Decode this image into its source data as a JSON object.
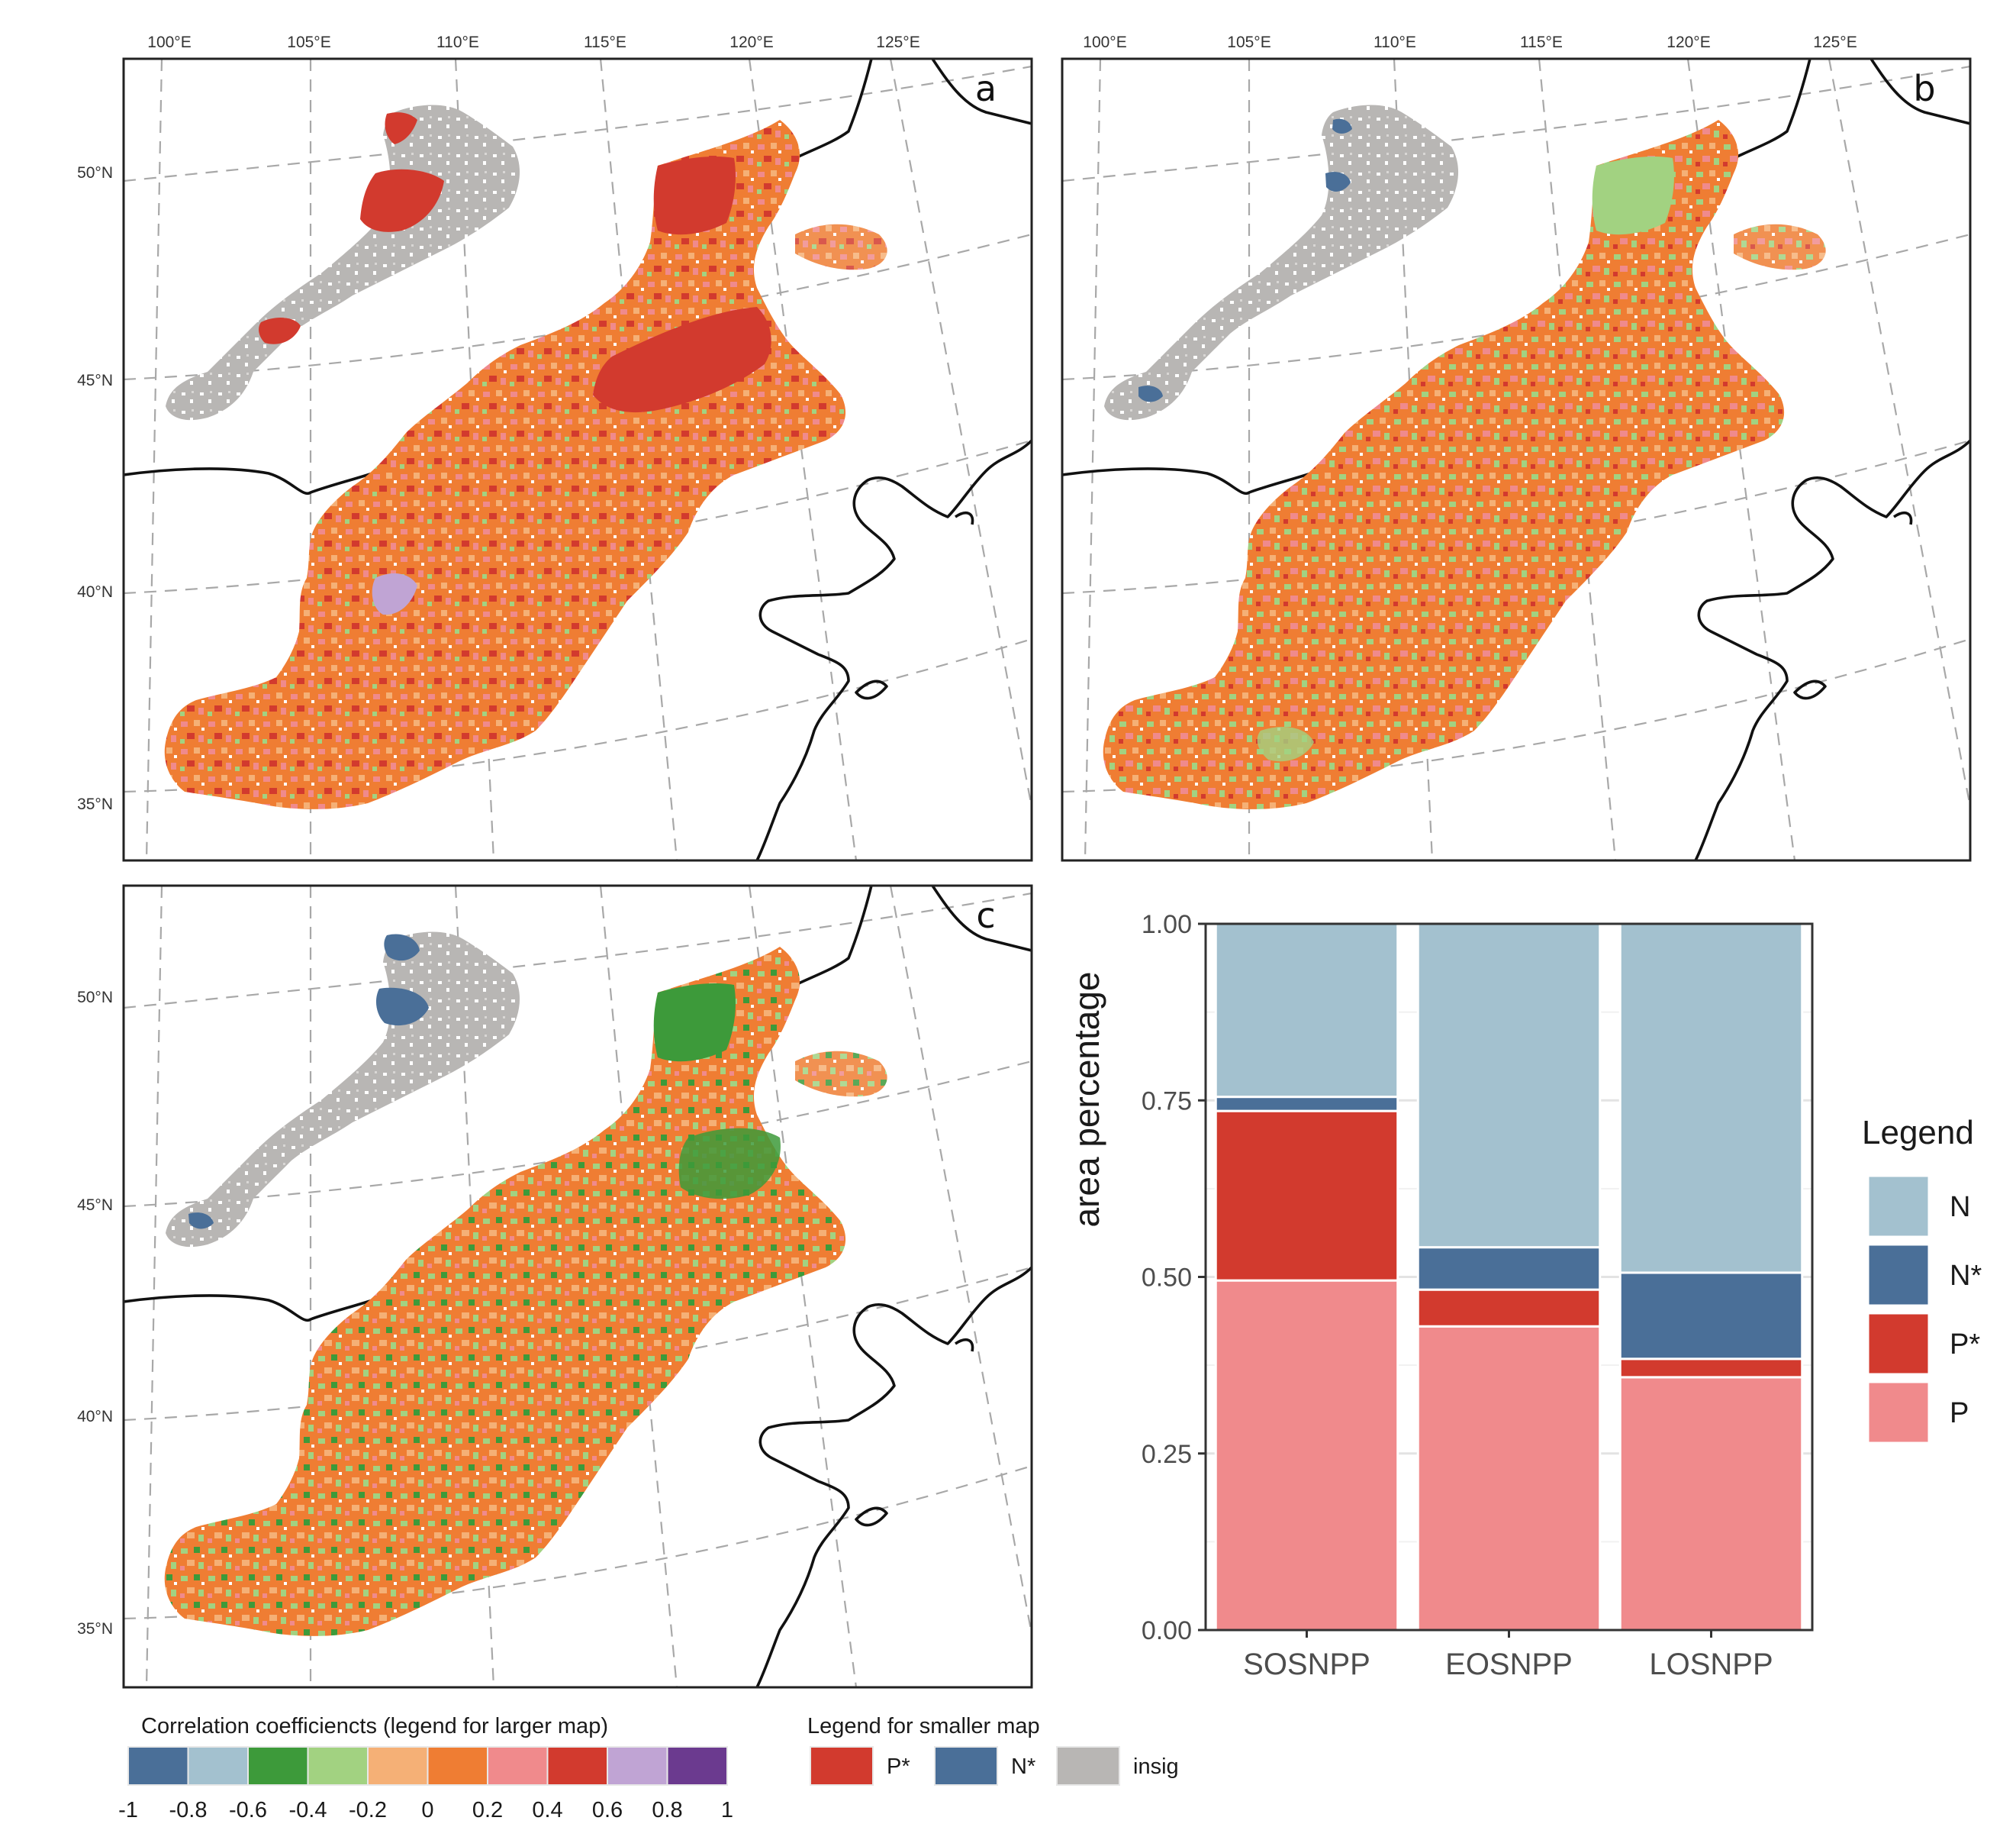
{
  "figure": {
    "panel_labels": [
      "a",
      "b",
      "c"
    ],
    "longitude_labels": [
      "100°E",
      "105°E",
      "110°E",
      "115°E",
      "120°E",
      "125°E"
    ],
    "latitude_labels": [
      "50°N",
      "45°N",
      "40°N",
      "35°N"
    ]
  },
  "chart_data": {
    "type": "bar",
    "stacked": true,
    "categories": [
      "SOSNPP",
      "EOSNPP",
      "LOSNPP"
    ],
    "series": [
      {
        "name": "P",
        "color": "#f08a8c",
        "values": [
          0.495,
          0.43,
          0.358
        ]
      },
      {
        "name": "P*",
        "color": "#d23a2e",
        "values": [
          0.24,
          0.052,
          0.026
        ]
      },
      {
        "name": "N*",
        "color": "#4a6f98",
        "values": [
          0.02,
          0.06,
          0.122
        ]
      },
      {
        "name": "N",
        "color": "#a3c1cf",
        "values": [
          0.245,
          0.458,
          0.494
        ]
      }
    ],
    "ylabel": "area percentage",
    "xlabel": "",
    "ylim": [
      0,
      1
    ],
    "yticks": [
      "0.00",
      "0.25",
      "0.50",
      "0.75",
      "1.00"
    ],
    "grid": true,
    "legend": {
      "title": "Legend",
      "position": "right",
      "order": [
        "N",
        "N*",
        "P*",
        "P"
      ]
    }
  },
  "colorbar": {
    "title": "Correlation coefficiencts (legend for larger map)",
    "colors": [
      "#4a6f98",
      "#a3c1cf",
      "#3d9a3a",
      "#a2d281",
      "#f5b076",
      "#ef7d33",
      "#f08a8c",
      "#d23a2e",
      "#c0a4d4",
      "#6b3a8f"
    ],
    "tick_labels": [
      "-1",
      "-0.8",
      "-0.6",
      "-0.4",
      "-0.2",
      "0",
      "0.2",
      "0.4",
      "0.6",
      "0.8",
      "1"
    ]
  },
  "small_legend": {
    "title": "Legend for smaller map",
    "items": [
      {
        "label": "P*",
        "color": "#d23a2e"
      },
      {
        "label": "N*",
        "color": "#4a6f98"
      },
      {
        "label": "insig",
        "color": "#b8b6b4"
      }
    ]
  }
}
